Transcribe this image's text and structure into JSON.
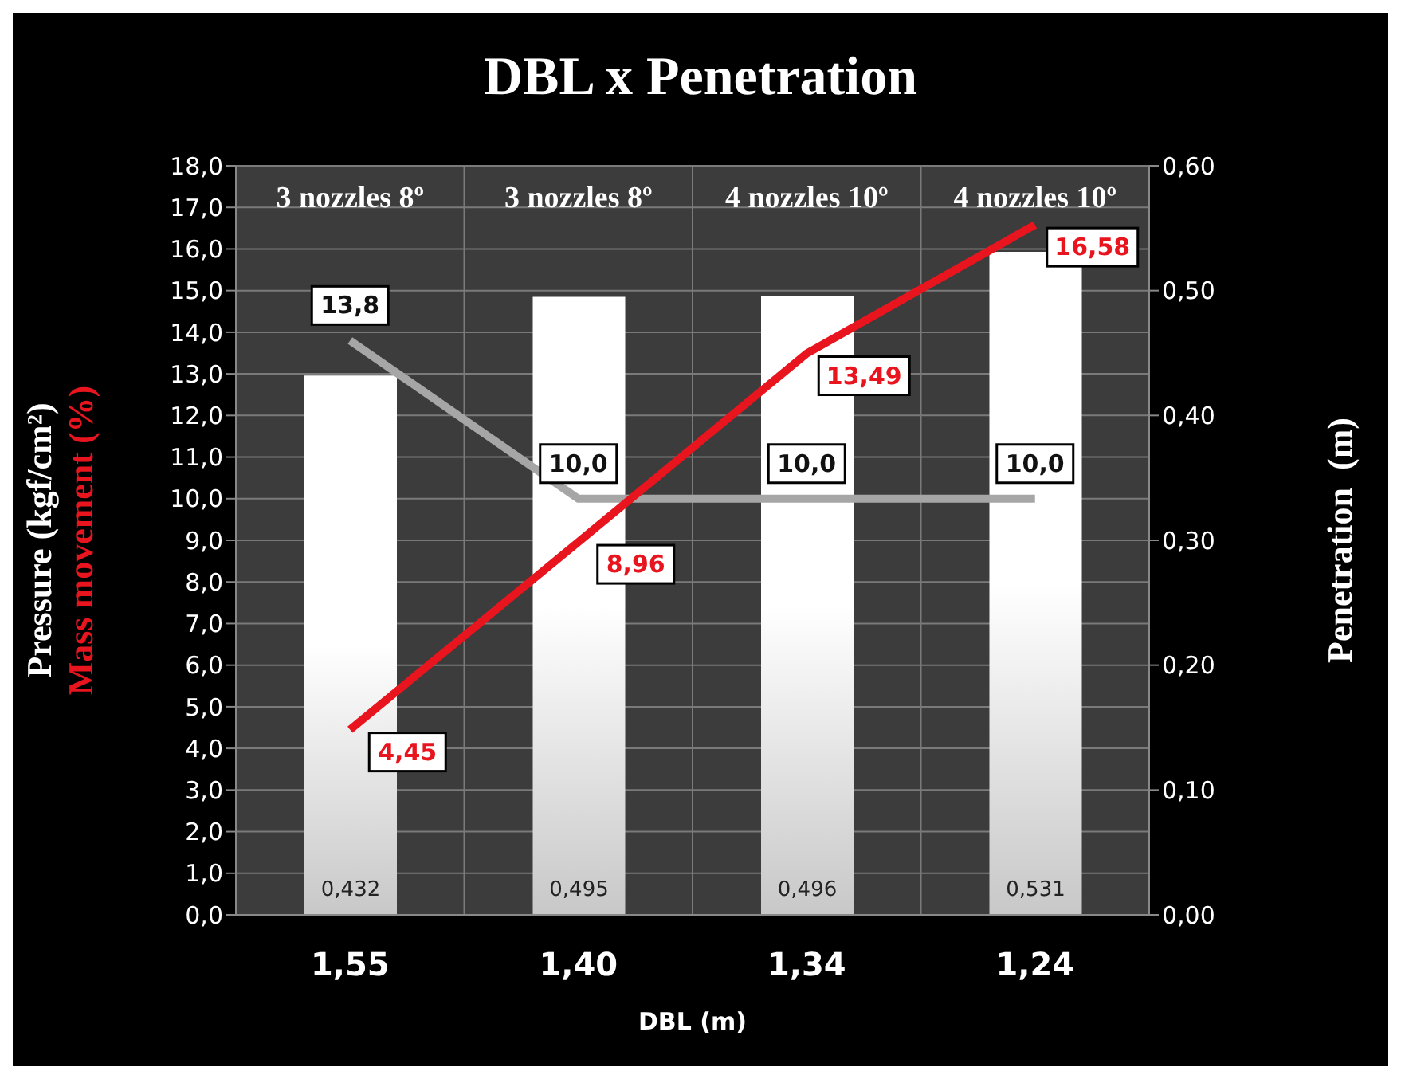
{
  "chart_data": {
    "type": "bar",
    "title": "DBL x Penetration",
    "xlabel": "DBL (m)",
    "ylabel": "Pressure (kgf/cm²)",
    "y2label": "Penetration  (m)",
    "categories": [
      "1,55",
      "1,40",
      "1,34",
      "1,24"
    ],
    "series": [
      {
        "axis": "y2",
        "color": "#ffffff",
        "values": [
          0.432,
          0.495,
          0.496,
          0.531
        ],
        "value_labels": [
          "0,432",
          "0,495",
          "0,496",
          "0,531"
        ]
      },
      {
        "type": "line",
        "axis": "y",
        "color": "#a6a6a6",
        "values": [
          13.8,
          10.0,
          10.0,
          10.0
        ],
        "value_labels": [
          "13,8",
          "10,0",
          "10,0",
          "10,0"
        ]
      },
      {
        "type": "line",
        "axis": "y",
        "name": "Mass movement (%)",
        "color": "#e8141e",
        "values": [
          4.45,
          8.96,
          13.49,
          16.58
        ],
        "value_labels": [
          "4,45",
          "8,96",
          "13,49",
          "16,58"
        ]
      }
    ],
    "ylim": [
      0,
      18
    ],
    "yticks": [
      {
        "value": 0,
        "label": "0,0"
      },
      {
        "value": 1,
        "label": "1,0"
      },
      {
        "value": 2,
        "label": "2,0"
      },
      {
        "value": 3,
        "label": "3,0"
      },
      {
        "value": 4,
        "label": "4,0"
      },
      {
        "value": 5,
        "label": "5,0"
      },
      {
        "value": 6,
        "label": "6,0"
      },
      {
        "value": 7,
        "label": "7,0"
      },
      {
        "value": 8,
        "label": "8,0"
      },
      {
        "value": 9,
        "label": "9,0"
      },
      {
        "value": 10,
        "label": "10,0"
      },
      {
        "value": 11,
        "label": "11,0"
      },
      {
        "value": 12,
        "label": "12,0"
      },
      {
        "value": 13,
        "label": "13,0"
      },
      {
        "value": 14,
        "label": "14,0"
      },
      {
        "value": 15,
        "label": "15,0"
      },
      {
        "value": 16,
        "label": "16,0"
      },
      {
        "value": 17,
        "label": "17,0"
      },
      {
        "value": 18,
        "label": "18,0"
      }
    ],
    "y2lim": [
      0,
      0.6
    ],
    "y2ticks": [
      {
        "value": 0,
        "label": "0,00"
      },
      {
        "value": 0.1,
        "label": "0,10"
      },
      {
        "value": 0.2,
        "label": "0,20"
      },
      {
        "value": 0.3,
        "label": "0,30"
      },
      {
        "value": 0.4,
        "label": "0,40"
      },
      {
        "value": 0.5,
        "label": "0,50"
      },
      {
        "value": 0.6,
        "label": "0,60"
      }
    ],
    "annotations": [
      "3 nozzles 8º",
      "3 nozzles 8º",
      "4 nozzles 10º",
      "4 nozzles 10º"
    ],
    "grid": true,
    "legend": false
  }
}
